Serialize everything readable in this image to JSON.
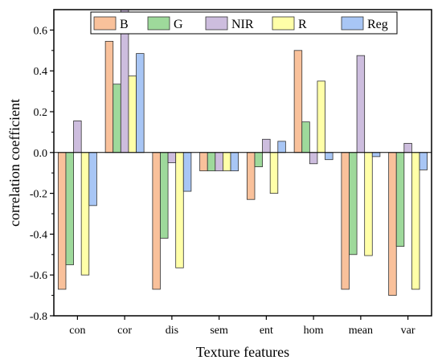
{
  "chart_data": {
    "type": "bar",
    "xlabel": "Texture features",
    "ylabel": "correlation coefficient",
    "ylim": [
      -0.8,
      0.7
    ],
    "yticks": [
      -0.8,
      -0.6,
      -0.4,
      -0.2,
      0.0,
      0.2,
      0.4,
      0.6
    ],
    "ytick_labels": [
      "-0.8",
      "-0.6",
      "-0.4",
      "-0.2",
      "0.0",
      "0.2",
      "0.4",
      "0.6"
    ],
    "categories": [
      "con",
      "cor",
      "dis",
      "sem",
      "ent",
      "hom",
      "mean",
      "var"
    ],
    "grid": false,
    "legend_position": "top-right",
    "series": [
      {
        "name": "B",
        "color": "#F9C19B",
        "values": [
          -0.67,
          0.545,
          -0.67,
          -0.09,
          -0.23,
          0.5,
          -0.67,
          -0.7
        ]
      },
      {
        "name": "G",
        "color": "#9ED99B",
        "values": [
          -0.55,
          0.335,
          -0.42,
          -0.09,
          -0.07,
          0.15,
          -0.5,
          -0.46
        ]
      },
      {
        "name": "NIR",
        "color": "#CDBDDE",
        "values": [
          0.155,
          0.7,
          -0.05,
          -0.09,
          0.065,
          -0.055,
          0.475,
          0.045
        ]
      },
      {
        "name": "R",
        "color": "#FFFFA8",
        "values": [
          -0.6,
          0.375,
          -0.565,
          -0.09,
          -0.2,
          0.35,
          -0.505,
          -0.67
        ]
      },
      {
        "name": "Reg",
        "color": "#A8C6F5",
        "values": [
          -0.26,
          0.485,
          -0.19,
          -0.09,
          0.055,
          -0.035,
          -0.02,
          -0.085
        ]
      }
    ]
  }
}
